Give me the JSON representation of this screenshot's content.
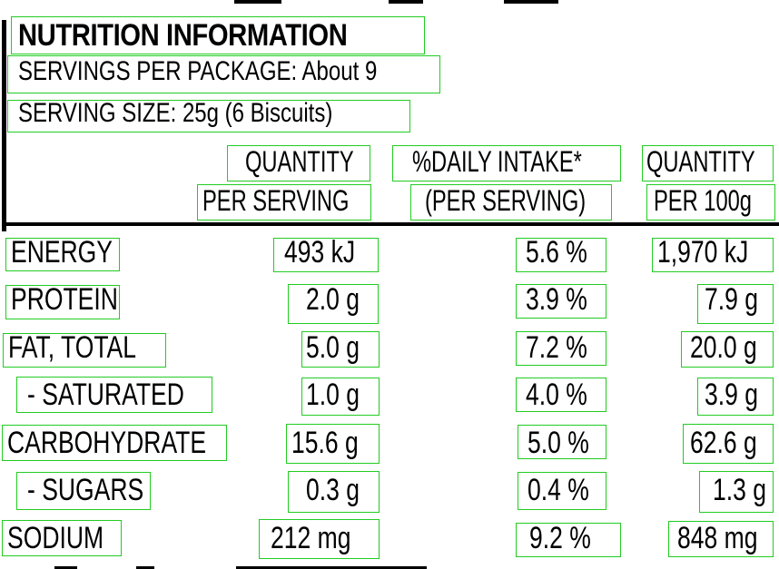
{
  "label": {
    "title": "NUTRITION INFORMATION",
    "servings_per_package": "SERVINGS PER PACKAGE: About 9",
    "serving_size": "SERVING SIZE: 25g (6 Biscuits)"
  },
  "headers": {
    "qty_serving_line1": "QUANTITY",
    "qty_serving_line2": "PER SERVING",
    "daily_intake_line1": "%DAILY INTAKE*",
    "daily_intake_line2": "(PER SERVING)",
    "qty_100g_line1": "QUANTITY",
    "qty_100g_line2": "PER 100g"
  },
  "rows": [
    {
      "name": "ENERGY",
      "per_serving": "493 kJ",
      "daily_intake": "5.6 %",
      "per_100g": "1,970 kJ"
    },
    {
      "name": "PROTEIN",
      "per_serving": "2.0 g",
      "daily_intake": "3.9 %",
      "per_100g": "7.9 g"
    },
    {
      "name": "FAT, TOTAL",
      "per_serving": "5.0 g",
      "daily_intake": "7.2 %",
      "per_100g": "20.0 g"
    },
    {
      "name": "- SATURATED",
      "per_serving": "1.0 g",
      "daily_intake": "4.0 %",
      "per_100g": "3.9 g"
    },
    {
      "name": "CARBOHYDRATE",
      "per_serving": "15.6 g",
      "daily_intake": "5.0 %",
      "per_100g": "62.6 g"
    },
    {
      "name": "- SUGARS",
      "per_serving": "0.3 g",
      "daily_intake": "0.4 %",
      "per_100g": "1.3 g"
    },
    {
      "name": "SODIUM",
      "per_serving": "212 mg",
      "daily_intake": "9.2 %",
      "per_100g": "848 mg"
    }
  ],
  "colors": {
    "text": "#000000",
    "background": "#ffffff",
    "annotation_box": "#22cc22"
  }
}
